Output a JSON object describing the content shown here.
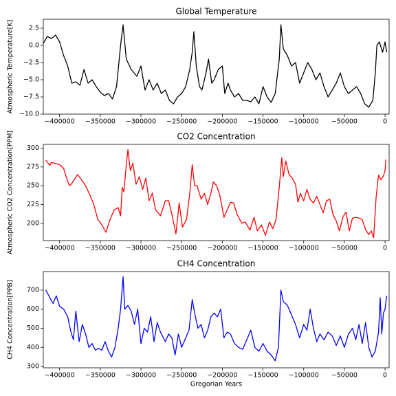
{
  "chart_data": [
    {
      "type": "line",
      "title": "Global Temperature",
      "ylabel": "Atmospheric Temperature[K]",
      "color": "#000000",
      "xlim": [
        -420000,
        5000
      ],
      "ylim": [
        -10,
        3.8
      ],
      "xticks": [
        {
          "value": -400000,
          "label": "−400000"
        },
        {
          "value": -350000,
          "label": "−350000"
        },
        {
          "value": -300000,
          "label": "−300000"
        },
        {
          "value": -250000,
          "label": "−250000"
        },
        {
          "value": -200000,
          "label": "−200000"
        },
        {
          "value": -150000,
          "label": "−150000"
        },
        {
          "value": -100000,
          "label": "−100000"
        },
        {
          "value": -50000,
          "label": "−50000"
        },
        0
      ],
      "yticks": [
        {
          "value": -10,
          "label": "−10.0"
        },
        {
          "value": -7.5,
          "label": "−7.5"
        },
        {
          "value": -5,
          "label": "−5.0"
        },
        {
          "value": -2.5,
          "label": "−2.5"
        },
        {
          "value": 0,
          "label": "0.0"
        },
        2.5
      ],
      "x": [
        -420000,
        -415000,
        -410000,
        -405000,
        -400000,
        -395000,
        -390000,
        -385000,
        -380000,
        -375000,
        -370000,
        -365000,
        -360000,
        -355000,
        -350000,
        -345000,
        -340000,
        -335000,
        -330000,
        -325000,
        -322000,
        -318000,
        -312000,
        -305000,
        -300000,
        -295000,
        -290000,
        -285000,
        -280000,
        -275000,
        -270000,
        -265000,
        -260000,
        -255000,
        -250000,
        -245000,
        -240000,
        -237000,
        -235000,
        -232000,
        -228000,
        -225000,
        -220000,
        -217000,
        -213000,
        -210000,
        -205000,
        -200000,
        -197000,
        -193000,
        -190000,
        -185000,
        -180000,
        -175000,
        -170000,
        -165000,
        -160000,
        -155000,
        -150000,
        -145000,
        -140000,
        -135000,
        -130000,
        -128000,
        -125000,
        -120000,
        -115000,
        -110000,
        -105000,
        -100000,
        -95000,
        -90000,
        -85000,
        -80000,
        -75000,
        -70000,
        -65000,
        -60000,
        -55000,
        -50000,
        -45000,
        -40000,
        -35000,
        -30000,
        -25000,
        -20000,
        -15000,
        -12000,
        -10000,
        -7000,
        -3000,
        0,
        2000
      ],
      "values": [
        0.3,
        1.3,
        1.0,
        1.5,
        0.5,
        -1.5,
        -3.0,
        -5.5,
        -5.3,
        -5.8,
        -3.5,
        -5.5,
        -5.0,
        -6.0,
        -6.8,
        -7.3,
        -7.0,
        -7.8,
        -6.0,
        0.0,
        3.0,
        -2.0,
        -3.5,
        -4.5,
        -3.0,
        -6.5,
        -5.0,
        -6.5,
        -5.5,
        -7.0,
        -6.5,
        -8.0,
        -8.5,
        -7.5,
        -7.0,
        -6.0,
        -3.5,
        -1.0,
        2.0,
        -3.0,
        -6.0,
        -6.5,
        -4.0,
        -2.0,
        -5.5,
        -5.0,
        -3.5,
        -3.0,
        -7.0,
        -5.5,
        -6.5,
        -7.5,
        -7.0,
        -8.0,
        -8.0,
        -8.2,
        -7.5,
        -8.5,
        -6.0,
        -7.5,
        -8.3,
        -7.0,
        -2.0,
        3.0,
        -0.5,
        -1.5,
        -3.0,
        -2.5,
        -5.5,
        -4.0,
        -2.5,
        -3.5,
        -5.0,
        -4.0,
        -6.0,
        -7.5,
        -6.5,
        -5.5,
        -4.0,
        -6.0,
        -7.0,
        -6.5,
        -6.0,
        -7.0,
        -8.5,
        -9.0,
        -8.0,
        -4.0,
        0.0,
        0.5,
        -1.0,
        0.5,
        -1.0
      ]
    },
    {
      "type": "line",
      "title": "CO2 Concentration",
      "ylabel": "Atmospheric CO2 Concentration[PPM]",
      "color": "#ff0000",
      "xlim": [
        -420000,
        5000
      ],
      "ylim": [
        177,
        305
      ],
      "xticks": [
        {
          "value": -400000,
          "label": "−400000"
        },
        {
          "value": -350000,
          "label": "−350000"
        },
        {
          "value": -300000,
          "label": "−300000"
        },
        {
          "value": -250000,
          "label": "−250000"
        },
        {
          "value": -200000,
          "label": "−200000"
        },
        {
          "value": -150000,
          "label": "−150000"
        },
        {
          "value": -100000,
          "label": "−100000"
        },
        {
          "value": -50000,
          "label": "−50000"
        },
        0
      ],
      "yticks": [
        200,
        225,
        250,
        275,
        300
      ],
      "x": [
        -417000,
        -412000,
        -410000,
        -400000,
        -395000,
        -392000,
        -388000,
        -385000,
        -378000,
        -373000,
        -368000,
        -362000,
        -358000,
        -353000,
        -348000,
        -343000,
        -338000,
        -333000,
        -328000,
        -325000,
        -323000,
        -321000,
        -318000,
        -316000,
        -313000,
        -310000,
        -306000,
        -302000,
        -298000,
        -294000,
        -290000,
        -286000,
        -282000,
        -276000,
        -270000,
        -266000,
        -262000,
        -257000,
        -253000,
        -249000,
        -244000,
        -240000,
        -237000,
        -234000,
        -231000,
        -226000,
        -222000,
        -218000,
        -214000,
        -211000,
        -207000,
        -203000,
        -198000,
        -194000,
        -190000,
        -186000,
        -182000,
        -176000,
        -172000,
        -166000,
        -161000,
        -157000,
        -152000,
        -147000,
        -142000,
        -138000,
        -134000,
        -130000,
        -127000,
        -125000,
        -122000,
        -118000,
        -114000,
        -110000,
        -107000,
        -104000,
        -100000,
        -96000,
        -92000,
        -88000,
        -84000,
        -80000,
        -76000,
        -72000,
        -68000,
        -64000,
        -60000,
        -56000,
        -52000,
        -48000,
        -44000,
        -40000,
        -36000,
        -32000,
        -28000,
        -24000,
        -20000,
        -17000,
        -14000,
        -11000,
        -8000,
        -5000,
        -2000,
        0,
        1000
      ],
      "values": [
        284,
        277,
        281,
        278,
        273,
        262,
        250,
        253,
        265,
        258,
        250,
        236,
        225,
        205,
        198,
        188,
        205,
        218,
        221,
        210,
        248,
        242,
        278,
        298,
        270,
        280,
        252,
        262,
        245,
        260,
        230,
        240,
        218,
        210,
        230,
        230,
        212,
        186,
        227,
        195,
        205,
        240,
        278,
        250,
        250,
        232,
        240,
        225,
        240,
        255,
        250,
        237,
        208,
        218,
        228,
        227,
        212,
        200,
        202,
        191,
        208,
        190,
        198,
        184,
        202,
        193,
        205,
        248,
        287,
        262,
        283,
        265,
        260,
        252,
        228,
        240,
        230,
        245,
        232,
        227,
        236,
        225,
        214,
        230,
        232,
        212,
        203,
        190,
        208,
        215,
        190,
        207,
        208,
        207,
        205,
        192,
        185,
        190,
        181,
        235,
        264,
        258,
        263,
        270,
        285
      ]
    },
    {
      "type": "line",
      "title": "CH4 Concentration",
      "ylabel": "CH4 Concentration[PPB]",
      "xlabel": "Gregorian Years",
      "color": "#0000ff",
      "xlim": [
        -420000,
        5000
      ],
      "ylim": [
        293,
        797
      ],
      "xticks": [
        {
          "value": -400000,
          "label": "−400000"
        },
        {
          "value": -350000,
          "label": "−350000"
        },
        {
          "value": -300000,
          "label": "−300000"
        },
        {
          "value": -250000,
          "label": "−250000"
        },
        {
          "value": -200000,
          "label": "−200000"
        },
        {
          "value": -150000,
          "label": "−150000"
        },
        {
          "value": -100000,
          "label": "−100000"
        },
        {
          "value": -50000,
          "label": "−50000"
        },
        0
      ],
      "yticks": [
        300,
        400,
        500,
        600,
        700
      ],
      "x": [
        -417000,
        -412000,
        -408000,
        -404000,
        -400000,
        -395000,
        -390000,
        -386000,
        -383000,
        -380000,
        -376000,
        -372000,
        -368000,
        -364000,
        -360000,
        -356000,
        -352000,
        -348000,
        -344000,
        -340000,
        -336000,
        -332000,
        -328000,
        -325000,
        -322000,
        -320000,
        -316000,
        -312000,
        -308000,
        -304000,
        -300000,
        -296000,
        -292000,
        -288000,
        -284000,
        -280000,
        -276000,
        -270000,
        -266000,
        -262000,
        -258000,
        -254000,
        -250000,
        -246000,
        -241000,
        -237000,
        -234000,
        -230000,
        -226000,
        -222000,
        -218000,
        -214000,
        -210000,
        -206000,
        -202000,
        -198000,
        -194000,
        -190000,
        -185000,
        -180000,
        -175000,
        -170000,
        -165000,
        -160000,
        -155000,
        -150000,
        -145000,
        -140000,
        -135000,
        -131000,
        -128000,
        -125000,
        -120000,
        -115000,
        -110000,
        -105000,
        -100000,
        -96000,
        -92000,
        -88000,
        -84000,
        -80000,
        -75000,
        -70000,
        -65000,
        -60000,
        -55000,
        -50000,
        -45000,
        -40000,
        -36000,
        -32000,
        -28000,
        -24000,
        -20000,
        -16000,
        -12000,
        -8000,
        -6000,
        -4000,
        -2000,
        0,
        2000
      ],
      "values": [
        700,
        660,
        630,
        670,
        615,
        600,
        560,
        480,
        440,
        590,
        430,
        520,
        470,
        400,
        420,
        385,
        395,
        385,
        430,
        380,
        350,
        400,
        500,
        600,
        770,
        600,
        620,
        590,
        520,
        600,
        420,
        500,
        480,
        560,
        430,
        530,
        480,
        430,
        470,
        450,
        360,
        470,
        400,
        440,
        490,
        650,
        580,
        500,
        520,
        450,
        490,
        560,
        580,
        560,
        600,
        450,
        480,
        470,
        420,
        400,
        390,
        440,
        490,
        400,
        380,
        420,
        380,
        360,
        330,
        400,
        700,
        640,
        620,
        570,
        520,
        450,
        520,
        490,
        600,
        500,
        430,
        470,
        440,
        480,
        460,
        410,
        460,
        400,
        470,
        500,
        440,
        520,
        420,
        530,
        400,
        350,
        380,
        480,
        660,
        470,
        580,
        600,
        670
      ]
    }
  ]
}
